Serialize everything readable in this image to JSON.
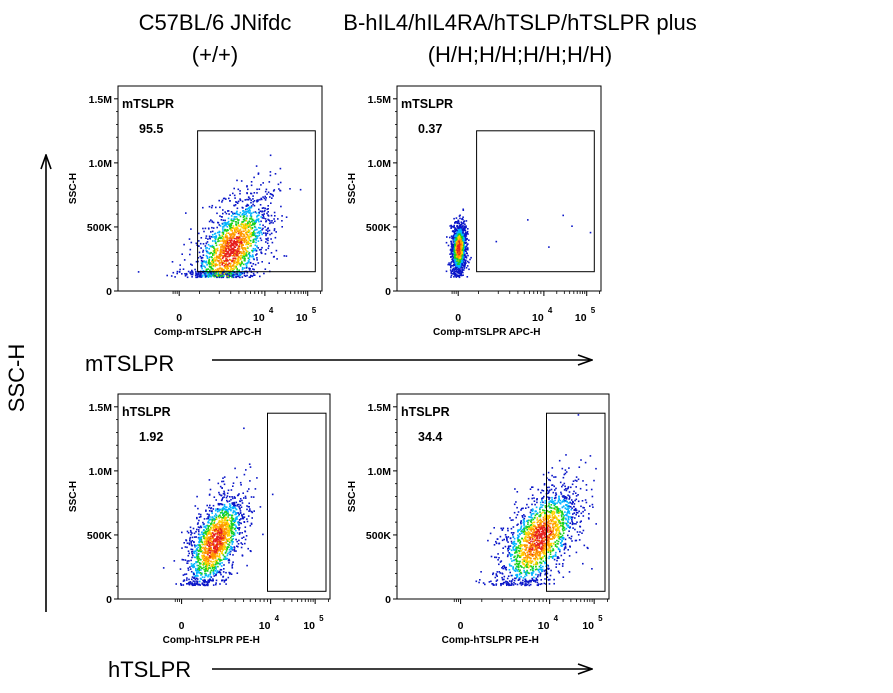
{
  "column_titles": [
    {
      "line1": "C57BL/6 JNifdc",
      "line2": "(+/+)"
    },
    {
      "line1": "B-hIL4/hIL4RA/hTSLP/hTSLPR plus",
      "line2": "(H/H;H/H;H/H;H/H)"
    }
  ],
  "row_arrow_labels": [
    "mTSLPR",
    "hTSLPR"
  ],
  "shared_y_label": "SSC-H",
  "colors": {
    "axis": "#000000",
    "arrow": "#000000",
    "density": [
      "#0a16c8",
      "#00b4ff",
      "#19d21e",
      "#ffd200",
      "#e61e1e"
    ]
  },
  "chart_data": [
    {
      "type": "scatter",
      "subtype": "flow-cytometry-density",
      "row": 0,
      "col": 0,
      "gate_name": "mTSLPR",
      "gate_percent": "95.5",
      "xlabel": "Comp-mTSLPR APC-H",
      "ylabel": "SSC-H",
      "x_scale": "biexponential",
      "y_scale": "linear",
      "x_ticks": [
        "0",
        "10^4",
        "10^5"
      ],
      "y_ticks": [
        "0",
        "500K",
        "1.0M",
        "1.5M"
      ],
      "gate": {
        "x_min": 900,
        "x_max": 150000,
        "y_min": 150000,
        "y_max": 1250000
      },
      "population": {
        "center_x": 3000,
        "center_y": 330000,
        "spread": "broad"
      }
    },
    {
      "type": "scatter",
      "subtype": "flow-cytometry-density",
      "row": 0,
      "col": 1,
      "gate_name": "mTSLPR",
      "gate_percent": "0.37",
      "xlabel": "Comp-mTSLPR APC-H",
      "ylabel": "SSC-H",
      "x_scale": "biexponential",
      "y_scale": "linear",
      "x_ticks": [
        "0",
        "10^4",
        "10^5"
      ],
      "y_ticks": [
        "0",
        "500K",
        "1.0M",
        "1.5M"
      ],
      "gate": {
        "x_min": 900,
        "x_max": 150000,
        "y_min": 150000,
        "y_max": 1250000
      },
      "population": {
        "center_x": 0,
        "center_y": 340000,
        "spread": "narrow"
      }
    },
    {
      "type": "scatter",
      "subtype": "flow-cytometry-density",
      "row": 1,
      "col": 0,
      "gate_name": "hTSLPR",
      "gate_percent": "1.92",
      "xlabel": "Comp-hTSLPR PE-H",
      "ylabel": "SSC-H",
      "x_scale": "biexponential",
      "y_scale": "linear",
      "x_ticks": [
        "0",
        "10^4",
        "10^5"
      ],
      "y_ticks": [
        "0",
        "500K",
        "1.0M",
        "1.5M"
      ],
      "gate": {
        "x_min": 9000,
        "x_max": 200000,
        "y_min": 60000,
        "y_max": 1450000
      },
      "population": {
        "center_x": 1500,
        "center_y": 450000,
        "spread": "medium"
      }
    },
    {
      "type": "scatter",
      "subtype": "flow-cytometry-density",
      "row": 1,
      "col": 1,
      "gate_name": "hTSLPR",
      "gate_percent": "34.4",
      "xlabel": "Comp-hTSLPR PE-H",
      "ylabel": "SSC-H",
      "x_scale": "biexponential",
      "y_scale": "linear",
      "x_ticks": [
        "0",
        "10^4",
        "10^5"
      ],
      "y_ticks": [
        "0",
        "500K",
        "1.0M",
        "1.5M"
      ],
      "gate": {
        "x_min": 9000,
        "x_max": 200000,
        "y_min": 60000,
        "y_max": 1450000
      },
      "population": {
        "center_x": 7000,
        "center_y": 480000,
        "spread": "broad"
      }
    }
  ]
}
